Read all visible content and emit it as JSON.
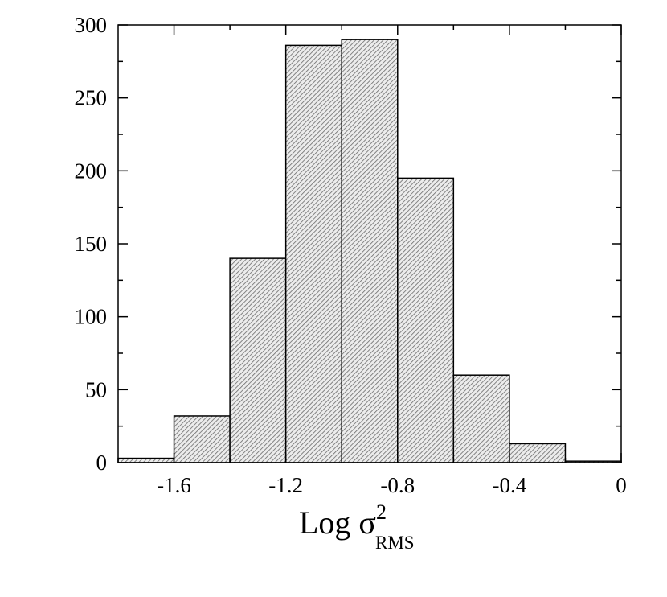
{
  "chart_data": {
    "type": "bar",
    "histogram": true,
    "bin_edges": [
      -1.8,
      -1.6,
      -1.4,
      -1.2,
      -1.0,
      -0.8,
      -0.6,
      -0.4,
      -0.2,
      0.0
    ],
    "values": [
      3,
      32,
      140,
      286,
      290,
      195,
      60,
      13,
      1
    ],
    "xlim": [
      -1.8,
      0
    ],
    "ylim": [
      0,
      300
    ],
    "xticks": [
      -1.6,
      -1.2,
      -0.8,
      -0.4,
      0
    ],
    "xtick_labels": [
      "-1.6",
      "-1.2",
      "-0.8",
      "-0.4",
      "0"
    ],
    "yticks": [
      0,
      50,
      100,
      150,
      200,
      250,
      300
    ],
    "ytick_labels": [
      "0",
      "50",
      "100",
      "150",
      "200",
      "250",
      "300"
    ],
    "xlabel": {
      "main": "Log σ",
      "sup": "2",
      "sub": "RMS"
    },
    "ylabel": "",
    "title": "",
    "grid": false,
    "bar_fill": "hatched-gray",
    "colors": {
      "bar_stroke": "#000000",
      "hatch": "#555555",
      "background": "#ffffff"
    }
  }
}
